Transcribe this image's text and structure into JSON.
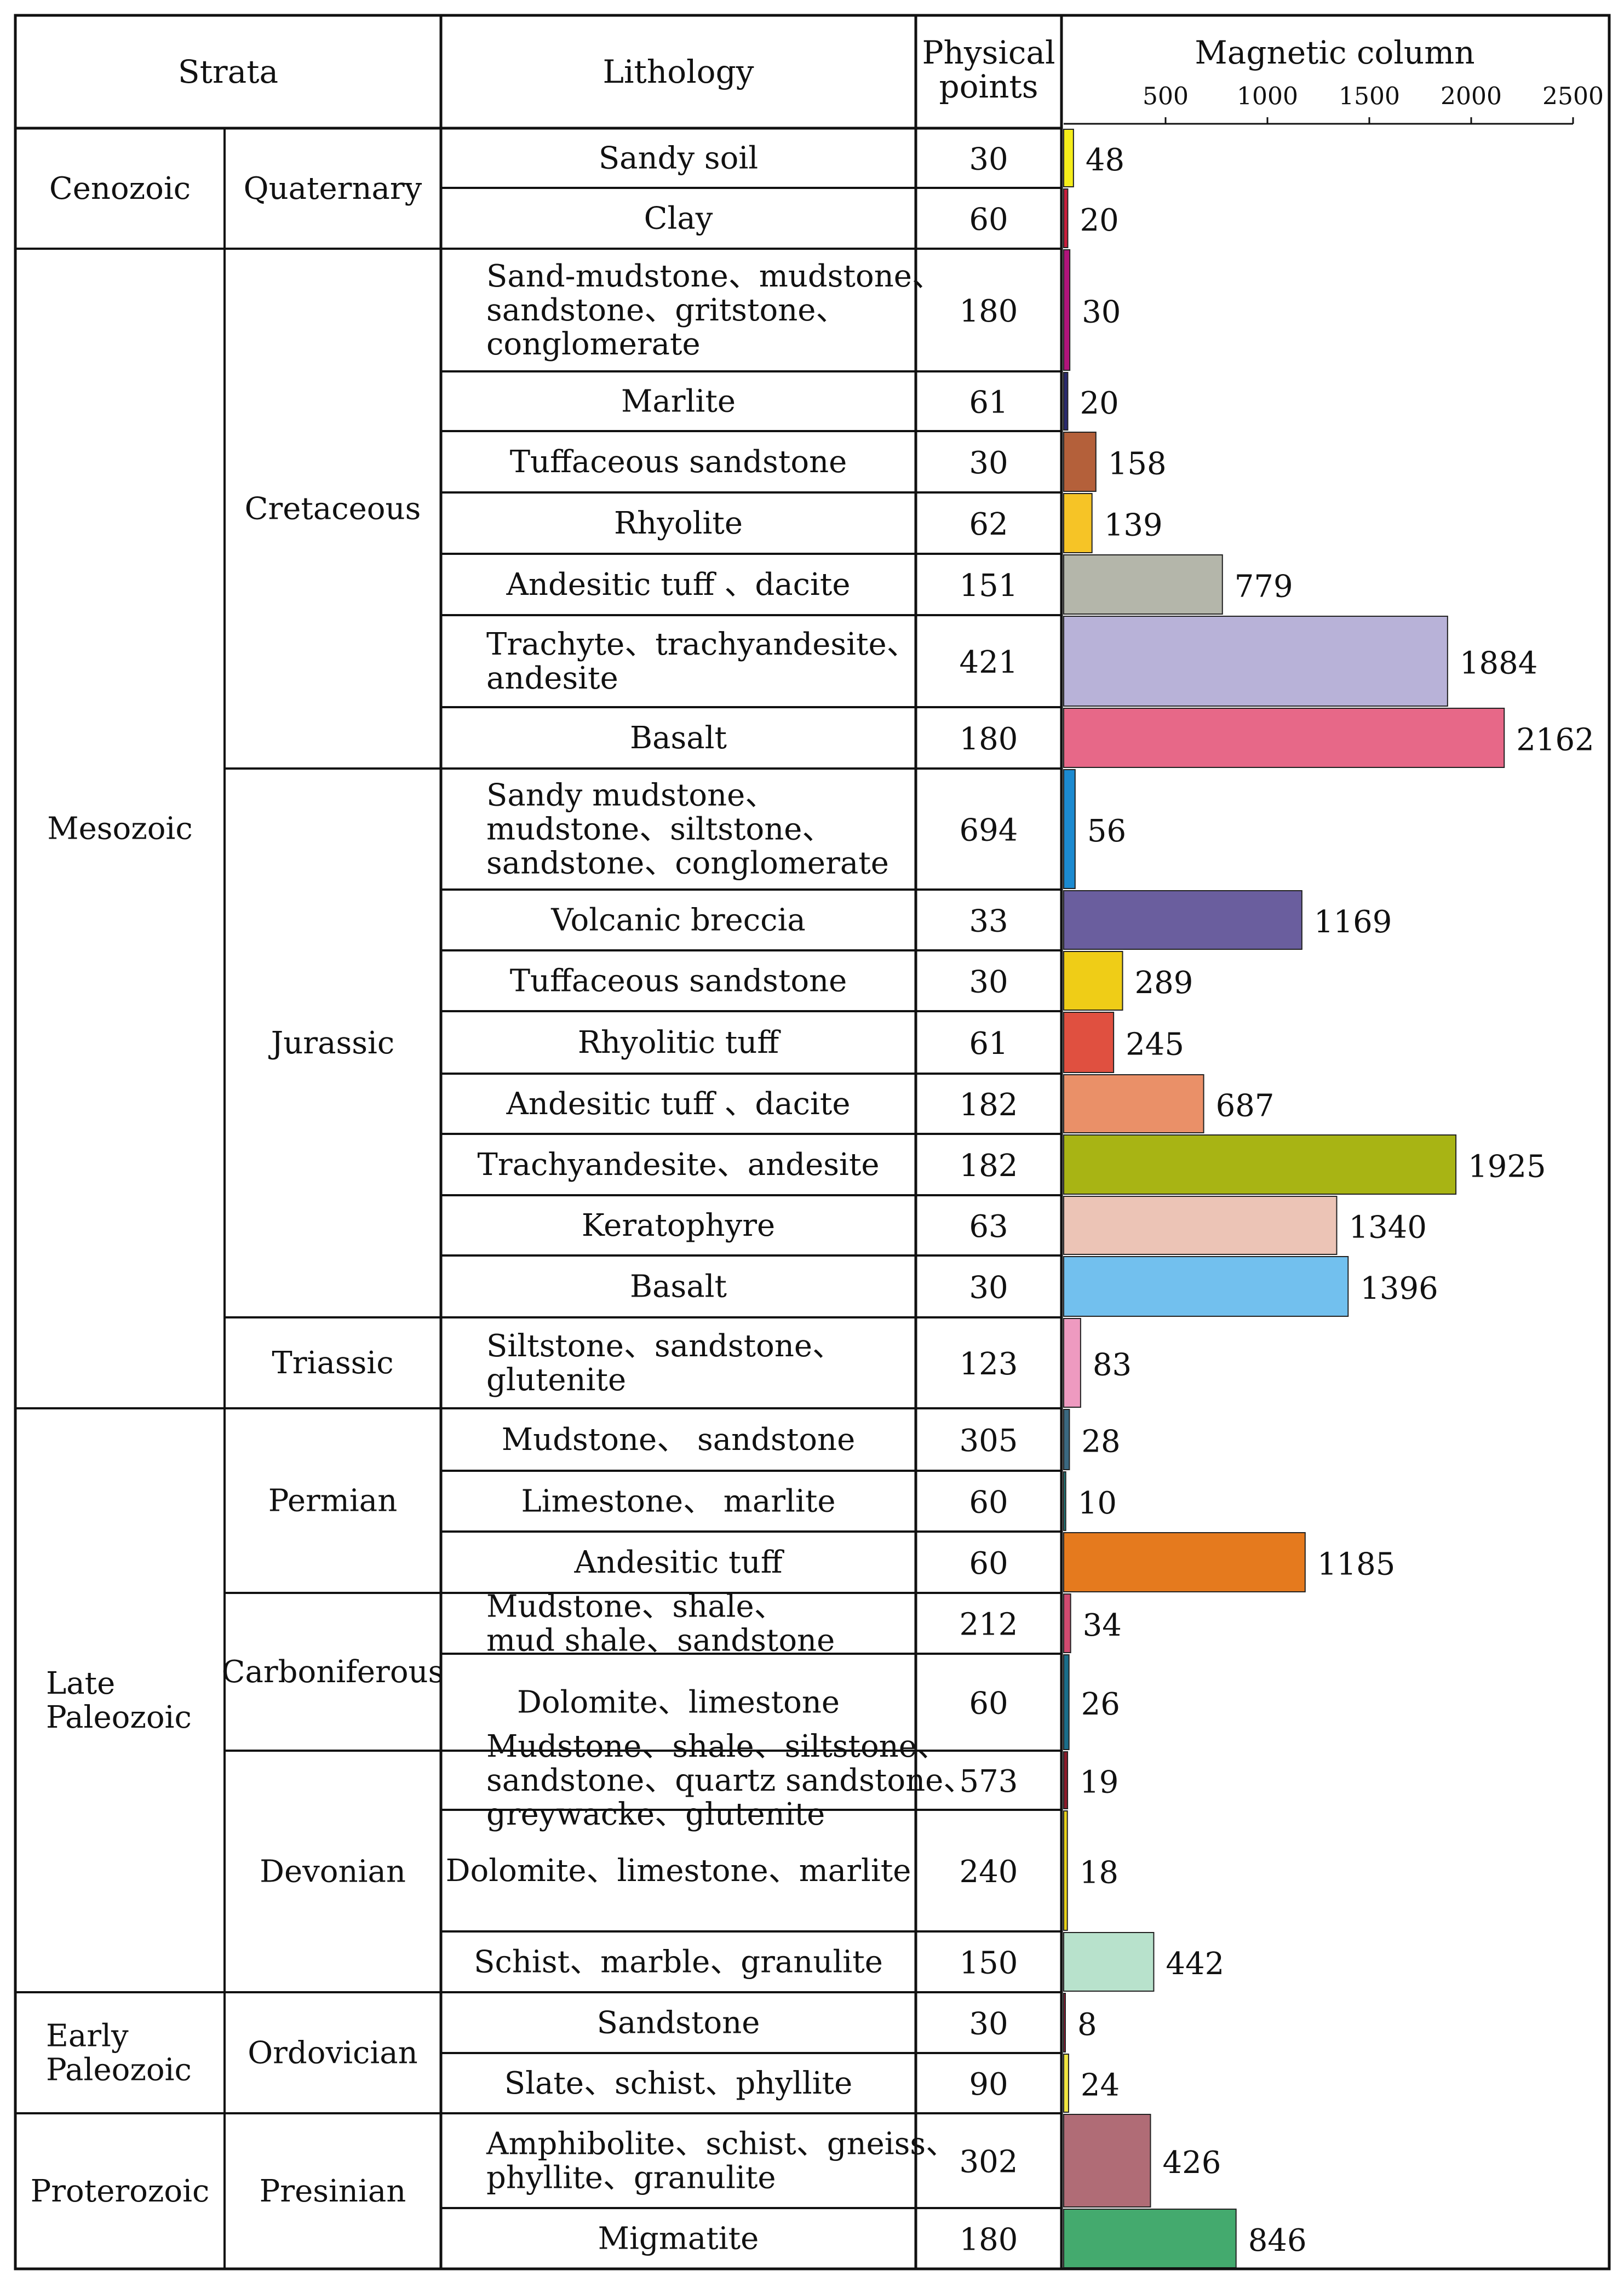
{
  "chart_data": {
    "type": "table",
    "headers": {
      "strata": "Strata",
      "lithology": "Lithology",
      "physical_points": [
        "Physical",
        "points"
      ],
      "magnetic": "Magnetic column"
    },
    "axis": {
      "ticks": [
        500,
        1000,
        1500,
        2000,
        2500
      ],
      "range": [
        0,
        2500
      ]
    },
    "eras": [
      {
        "name": [
          "Cenozoic"
        ]
      },
      {
        "name": [
          "Mesozoic"
        ]
      },
      {
        "name": [
          "Late",
          "Paleozoic"
        ]
      },
      {
        "name": [
          "Early",
          "Paleozoic"
        ]
      },
      {
        "name": [
          "Proterozoic"
        ]
      }
    ],
    "periods": [
      {
        "name": "Quaternary"
      },
      {
        "name": "Cretaceous"
      },
      {
        "name": "Jurassic"
      },
      {
        "name": "Triassic"
      },
      {
        "name": "Permian"
      },
      {
        "name": "Carboniferous"
      },
      {
        "name": "Devonian"
      },
      {
        "name": "Ordovician"
      },
      {
        "name": "Presinian"
      }
    ],
    "rows": [
      {
        "lithology": [
          "Sandy soil"
        ],
        "points": "30",
        "value": 48,
        "color": "#f5ee1a"
      },
      {
        "lithology": [
          "Clay"
        ],
        "points": "60",
        "value": 20,
        "color": "#c81e3c"
      },
      {
        "lithology": [
          "Sand-mudstone、mudstone、",
          "sandstone、gritstone、",
          "conglomerate"
        ],
        "points": "180",
        "value": 30,
        "color": "#b0147a"
      },
      {
        "lithology": [
          "Marlite"
        ],
        "points": "61",
        "value": 20,
        "color": "#2a2a6e"
      },
      {
        "lithology": [
          "Tuffaceous sandstone"
        ],
        "points": "30",
        "value": 158,
        "color": "#b4603a"
      },
      {
        "lithology": [
          "Rhyolite"
        ],
        "points": "62",
        "value": 139,
        "color": "#f6c426"
      },
      {
        "lithology": [
          "Andesitic tuff 、dacite"
        ],
        "points": "151",
        "value": 779,
        "color": "#b4b6aa"
      },
      {
        "lithology": [
          "Trachyte、trachyandesite、",
          "andesite"
        ],
        "points": "421",
        "value": 1884,
        "color": "#b8b2d8"
      },
      {
        "lithology": [
          "Basalt"
        ],
        "points": "180",
        "value": 2162,
        "color": "#e76888"
      },
      {
        "lithology": [
          "Sandy mudstone、",
          "mudstone、siltstone、",
          "sandstone、conglomerate"
        ],
        "points": "694",
        "value": 56,
        "color": "#1c8ad0"
      },
      {
        "lithology": [
          "Volcanic breccia"
        ],
        "points": "33",
        "value": 1169,
        "color": "#6a5e9e"
      },
      {
        "lithology": [
          "Tuffaceous sandstone"
        ],
        "points": "30",
        "value": 289,
        "color": "#efcd17"
      },
      {
        "lithology": [
          "Rhyolitic tuff"
        ],
        "points": "61",
        "value": 245,
        "color": "#e05040"
      },
      {
        "lithology": [
          "Andesitic tuff 、dacite"
        ],
        "points": "182",
        "value": 687,
        "color": "#ea9068"
      },
      {
        "lithology": [
          "Trachyandesite、andesite"
        ],
        "points": "182",
        "value": 1925,
        "color": "#a8b414"
      },
      {
        "lithology": [
          "Keratophyre"
        ],
        "points": "63",
        "value": 1340,
        "color": "#ecc4b6"
      },
      {
        "lithology": [
          "Basalt"
        ],
        "points": "30",
        "value": 1396,
        "color": "#72c0ee"
      },
      {
        "lithology": [
          "Siltstone、sandstone、",
          "glutenite"
        ],
        "points": "123",
        "value": 83,
        "color": "#ee9ac0"
      },
      {
        "lithology": [
          "Mudstone、 sandstone"
        ],
        "points": "305",
        "value": 28,
        "color": "#3a6880"
      },
      {
        "lithology": [
          "Limestone、 marlite"
        ],
        "points": "60",
        "value": 10,
        "color": "#1c8a8a"
      },
      {
        "lithology": [
          "Andesitic tuff"
        ],
        "points": "60",
        "value": 1185,
        "color": "#e57a1e"
      },
      {
        "lithology": [
          "Mudstone、shale、",
          "mud shale、sandstone"
        ],
        "points": "212",
        "value": 34,
        "color": "#d04a70"
      },
      {
        "lithology": [
          "Dolomite、limestone"
        ],
        "points": "60",
        "value": 26,
        "color": "#1a6e8a"
      },
      {
        "lithology": [
          "Mudstone、shale、siltstone、",
          "sandstone、quartz sandstone、",
          "greywacke、glutenite"
        ],
        "points": "573",
        "value": 19,
        "color": "#8a1a2a"
      },
      {
        "lithology": [
          "Dolomite、limestone、marlite"
        ],
        "points": "240",
        "value": 18,
        "color": "#e8d21a"
      },
      {
        "lithology": [
          "Schist、marble、granulite"
        ],
        "points": "150",
        "value": 442,
        "color": "#b8e2cc"
      },
      {
        "lithology": [
          "Sandstone"
        ],
        "points": "30",
        "value": 8,
        "color": "#c0143a"
      },
      {
        "lithology": [
          "Slate、schist、phyllite"
        ],
        "points": "90",
        "value": 24,
        "color": "#f2e640"
      },
      {
        "lithology": [
          "Amphibolite、schist、gneiss、",
          "phyllite、granulite"
        ],
        "points": "302",
        "value": 426,
        "color": "#b06c76"
      },
      {
        "lithology": [
          "Migmatite"
        ],
        "points": "180",
        "value": 846,
        "color": "#44aa6e"
      }
    ]
  }
}
